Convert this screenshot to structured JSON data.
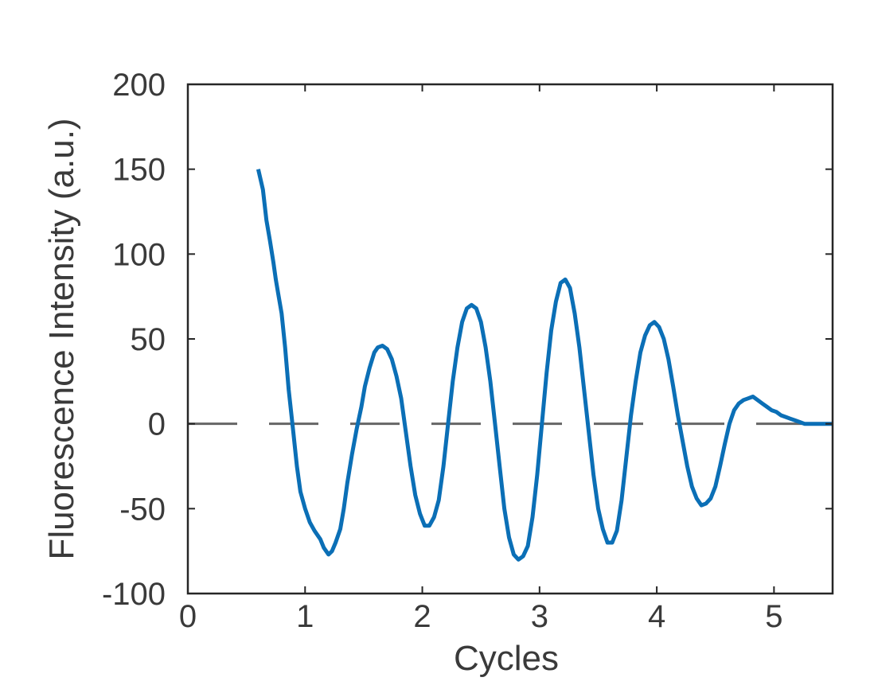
{
  "chart_data": {
    "type": "line",
    "title": "",
    "xlabel": "Cycles",
    "ylabel": "Fluorescence Intensity (a.u.)",
    "xlim": [
      0,
      5.5
    ],
    "ylim": [
      -100,
      200
    ],
    "xticks": [
      0,
      1,
      2,
      3,
      4,
      5
    ],
    "yticks": [
      -100,
      -50,
      0,
      50,
      100,
      150,
      200
    ],
    "xtick_labels": [
      "0",
      "1",
      "2",
      "3",
      "4",
      "5"
    ],
    "ytick_labels": [
      "-100",
      "-50",
      "0",
      "50",
      "100",
      "150",
      "200"
    ],
    "grid": false,
    "reference_line": {
      "y": 0,
      "style": "dashed",
      "color": "#666666"
    },
    "series": [
      {
        "name": "fluorescence",
        "color": "#0b6fb6",
        "x": [
          0.6,
          0.64,
          0.67,
          0.7,
          0.73,
          0.75,
          0.77,
          0.8,
          0.83,
          0.86,
          0.9,
          0.93,
          0.96,
          1.0,
          1.04,
          1.08,
          1.1,
          1.13,
          1.16,
          1.2,
          1.23,
          1.26,
          1.3,
          1.33,
          1.36,
          1.4,
          1.44,
          1.48,
          1.51,
          1.55,
          1.59,
          1.62,
          1.66,
          1.7,
          1.74,
          1.78,
          1.82,
          1.86,
          1.9,
          1.94,
          1.98,
          2.02,
          2.06,
          2.1,
          2.14,
          2.18,
          2.22,
          2.26,
          2.3,
          2.34,
          2.38,
          2.42,
          2.46,
          2.5,
          2.54,
          2.58,
          2.62,
          2.66,
          2.7,
          2.74,
          2.78,
          2.82,
          2.86,
          2.9,
          2.94,
          2.98,
          3.02,
          3.06,
          3.1,
          3.14,
          3.18,
          3.22,
          3.26,
          3.3,
          3.34,
          3.38,
          3.42,
          3.46,
          3.5,
          3.54,
          3.58,
          3.62,
          3.66,
          3.7,
          3.74,
          3.78,
          3.82,
          3.86,
          3.9,
          3.94,
          3.98,
          4.02,
          4.06,
          4.1,
          4.14,
          4.18,
          4.22,
          4.26,
          4.3,
          4.34,
          4.38,
          4.42,
          4.46,
          4.5,
          4.54,
          4.58,
          4.62,
          4.66,
          4.7,
          4.74,
          4.78,
          4.82,
          4.86,
          4.9,
          4.94,
          4.98,
          5.02,
          5.06,
          5.1,
          5.14,
          5.18,
          5.22,
          5.26,
          5.3,
          5.34,
          5.38,
          5.42,
          5.46,
          5.5
        ],
        "y": [
          150,
          138,
          120,
          108,
          95,
          85,
          77,
          65,
          45,
          20,
          -5,
          -25,
          -40,
          -50,
          -58,
          -63,
          -65,
          -68,
          -73,
          -77,
          -75,
          -70,
          -62,
          -50,
          -35,
          -18,
          -3,
          10,
          22,
          33,
          42,
          45,
          46,
          44,
          38,
          28,
          15,
          -5,
          -25,
          -42,
          -53,
          -60,
          -60,
          -55,
          -45,
          -25,
          0,
          25,
          45,
          60,
          68,
          70,
          68,
          60,
          45,
          25,
          0,
          -25,
          -50,
          -67,
          -77,
          -80,
          -78,
          -72,
          -55,
          -30,
          0,
          30,
          55,
          72,
          83,
          85,
          80,
          65,
          45,
          20,
          -5,
          -30,
          -50,
          -62,
          -70,
          -70,
          -63,
          -45,
          -20,
          5,
          25,
          42,
          52,
          58,
          60,
          57,
          50,
          38,
          22,
          5,
          -10,
          -25,
          -37,
          -44,
          -48,
          -47,
          -44,
          -37,
          -25,
          -12,
          0,
          8,
          12,
          14,
          15,
          16,
          14,
          12,
          10,
          8,
          7,
          5,
          4,
          3,
          2,
          1,
          0,
          0,
          0,
          0,
          0,
          0,
          0
        ]
      }
    ]
  }
}
